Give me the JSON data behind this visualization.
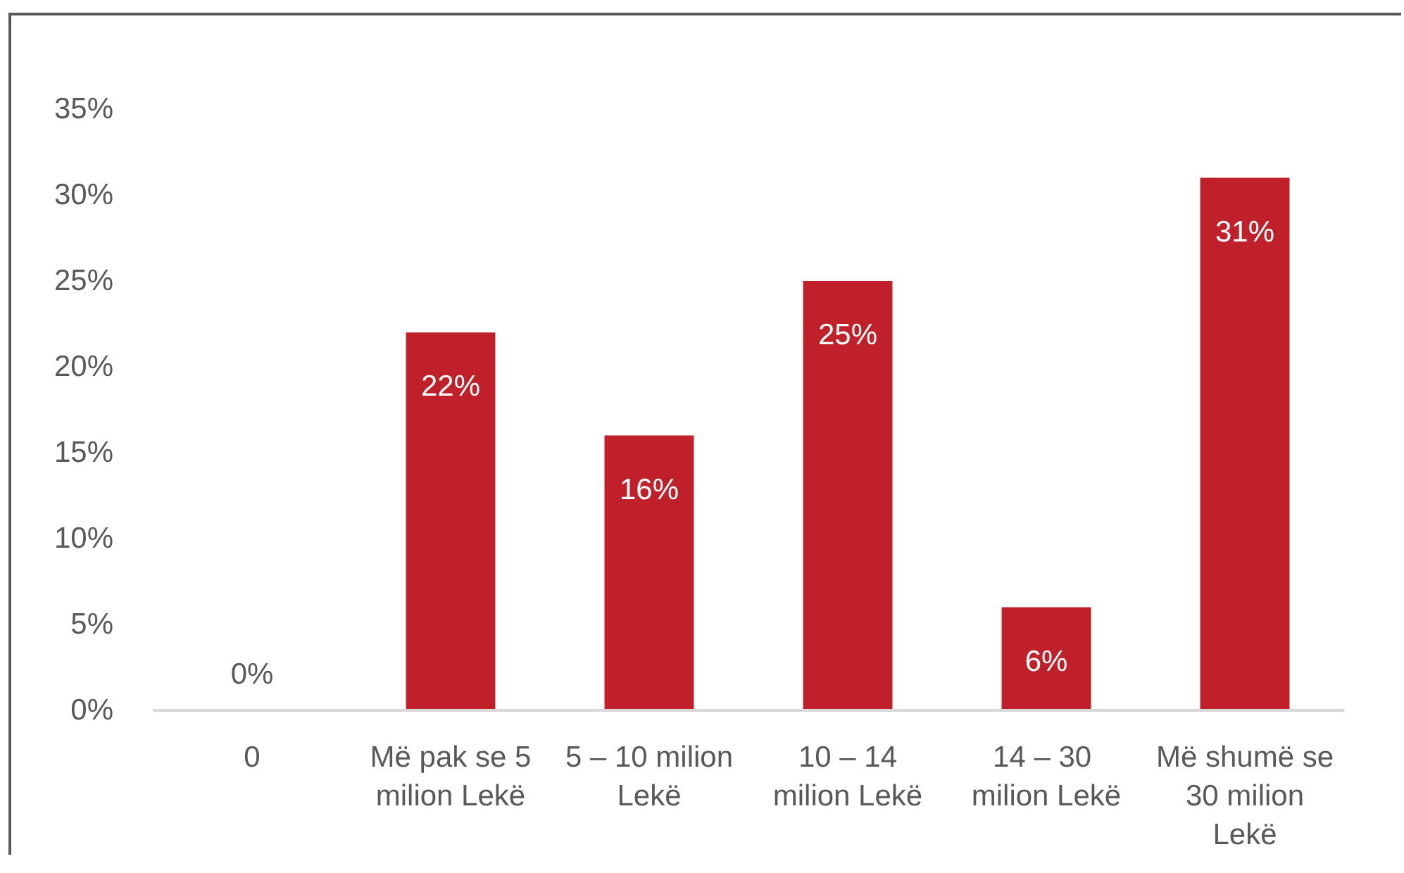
{
  "chart_data": {
    "type": "bar",
    "categories": [
      "0",
      "Më pak se 5 milion Lekë",
      "5 – 10 milion Lekë",
      "10 – 14 milion Lekë",
      "14  – 30 milion Lekë",
      "Më shumë se 30 milion Lekë"
    ],
    "values": [
      0,
      22,
      16,
      25,
      6,
      31
    ],
    "color": "#c0202a",
    "value_labels": [
      "0%",
      "22%",
      "16%",
      "25%",
      "6%",
      "31%"
    ],
    "ylim": [
      0,
      35
    ],
    "yticks": [
      {
        "value": 0,
        "label": "0%"
      },
      {
        "value": 5,
        "label": "5%"
      },
      {
        "value": 10,
        "label": "10%"
      },
      {
        "value": 15,
        "label": "15%"
      },
      {
        "value": 20,
        "label": "20%"
      },
      {
        "value": 25,
        "label": "25%"
      },
      {
        "value": 30,
        "label": "30%"
      },
      {
        "value": 35,
        "label": "35%"
      }
    ]
  }
}
